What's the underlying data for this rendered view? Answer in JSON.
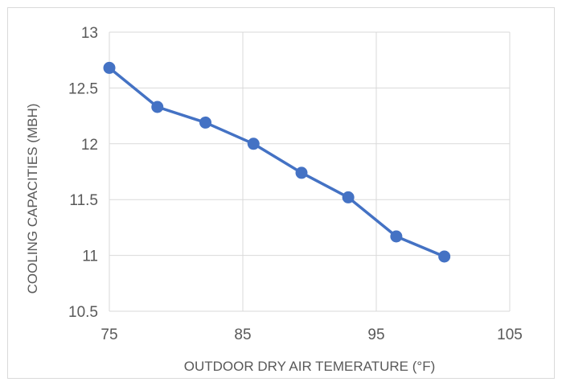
{
  "chart_data": {
    "type": "line",
    "xlabel": "OUTDOOR DRY AIR TEMERATURE (°F)",
    "ylabel": "COOLING CAPACITIES (MBH)",
    "xlim": [
      75,
      105
    ],
    "ylim": [
      10.5,
      13
    ],
    "xticks": [
      "75",
      "85",
      "95",
      "105"
    ],
    "yticks": [
      "10.5",
      "11",
      "11.5",
      "12",
      "12.5",
      "13"
    ],
    "grid": true,
    "legend": "none",
    "line_color": "#4472c4",
    "series": [
      {
        "x": [
          75,
          78.6,
          82.2,
          85.8,
          89.4,
          92.9,
          96.5,
          100.1
        ],
        "y": [
          12.68,
          12.33,
          12.19,
          12.0,
          11.74,
          11.52,
          11.17,
          10.99
        ]
      }
    ]
  }
}
